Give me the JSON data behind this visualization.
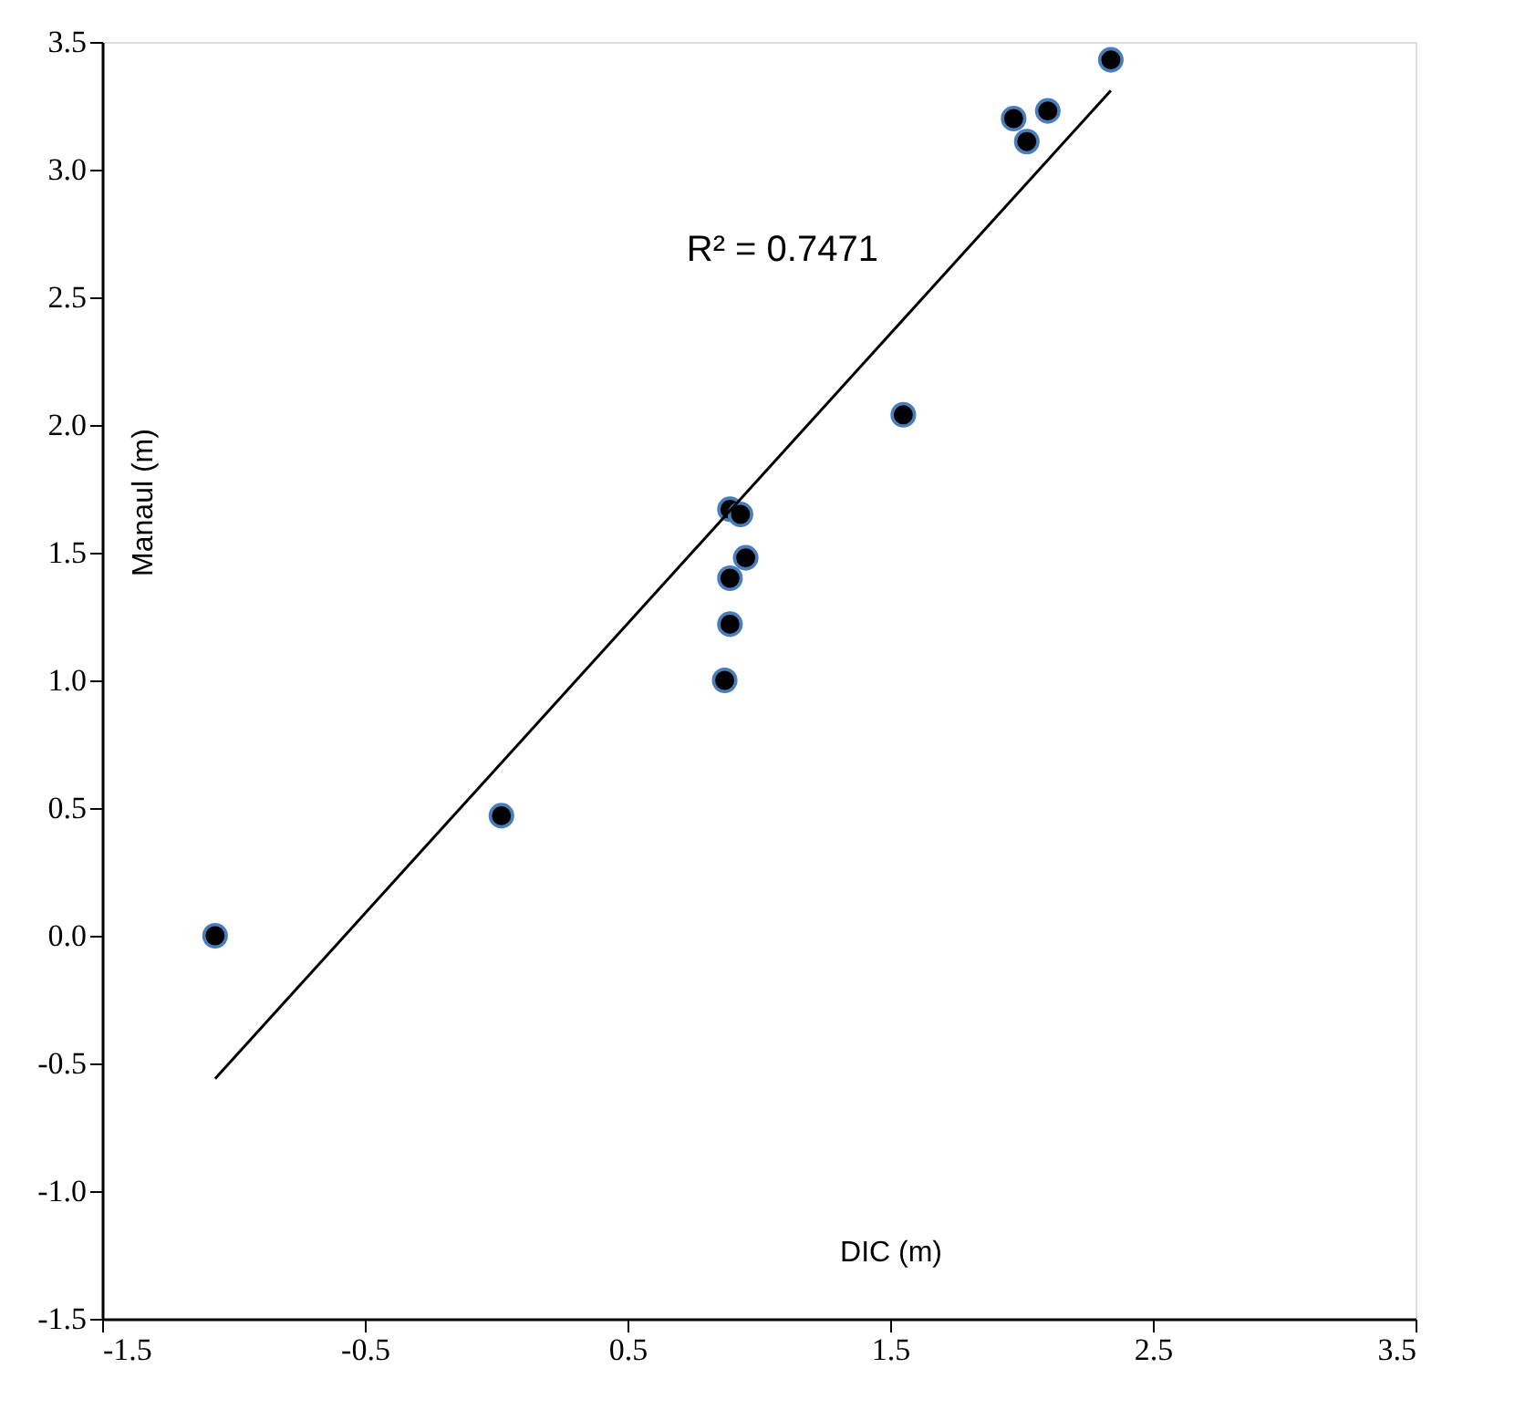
{
  "chart_data": {
    "type": "scatter",
    "xlabel": "DIC (m)",
    "ylabel": "Manaul (m)",
    "xlim": [
      -1.5,
      3.5
    ],
    "xticks": [
      {
        "value": -1.5,
        "label": "-1.5"
      },
      {
        "value": -0.5,
        "label": "-0.5"
      },
      {
        "value": 0.5,
        "label": "0.5"
      },
      {
        "value": 1.5,
        "label": "1.5"
      },
      {
        "value": 2.5,
        "label": "2.5"
      },
      {
        "value": 3.5,
        "label": "3.5"
      }
    ],
    "ylim": [
      -1.5,
      3.5
    ],
    "yticks": [
      {
        "value": -1.5,
        "label": "-1.5"
      },
      {
        "value": -1,
        "label": "-1.0"
      },
      {
        "value": -0.5,
        "label": "-0.5"
      },
      {
        "value": 0,
        "label": "0.0"
      },
      {
        "value": 0.5,
        "label": "0.5"
      },
      {
        "value": 1,
        "label": "1.0"
      },
      {
        "value": 1.5,
        "label": "1.5"
      },
      {
        "value": 2,
        "label": "2.0"
      },
      {
        "value": 2.5,
        "label": "2.5"
      },
      {
        "value": 3,
        "label": "3.0"
      },
      {
        "value": 3.5,
        "label": "3.5"
      }
    ],
    "grid": false,
    "annotations": [
      "R² = 0.7471"
    ],
    "series": [
      {
        "color": "#000000",
        "marker": "circle",
        "x": [
          -1.07,
          0.02,
          2.34,
          1.97,
          2.1,
          2.02,
          1.55,
          0.89,
          0.93,
          0.95,
          0.89,
          0.89,
          0.87
        ],
        "values": [
          0.0,
          0.47,
          3.43,
          3.2,
          3.23,
          3.11,
          2.04,
          1.67,
          1.65,
          1.48,
          1.4,
          1.22,
          1.0
        ]
      },
      {
        "type": "line",
        "color": "#000000",
        "marker": "none",
        "line_style": "solid",
        "x": [
          -1.07,
          2.34
        ],
        "values": [
          -0.56,
          3.31
        ]
      }
    ]
  }
}
